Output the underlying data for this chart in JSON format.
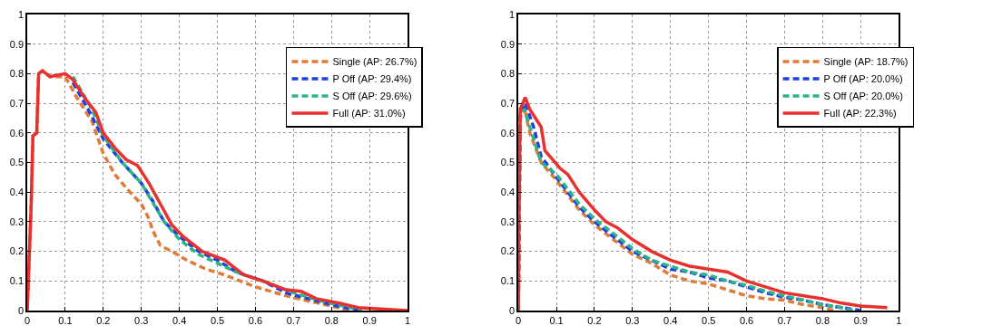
{
  "chart_data": [
    {
      "type": "line",
      "xlim": [
        0,
        1
      ],
      "ylim": [
        0,
        1
      ],
      "xticks": [
        0,
        0.1,
        0.2,
        0.3,
        0.4,
        0.5,
        0.6,
        0.7,
        0.8,
        0.9,
        1
      ],
      "yticks": [
        0,
        0.1,
        0.2,
        0.3,
        0.4,
        0.5,
        0.6,
        0.7,
        0.8,
        0.9,
        1
      ],
      "grid": true,
      "legend": "top right",
      "marker": "none",
      "series": [
        {
          "name": "Single (AP: 26.7%)",
          "color": "#e07b39",
          "line_style": "dashed",
          "x": [
            0,
            0.01,
            0.015,
            0.025,
            0.03,
            0.04,
            0.06,
            0.08,
            0.1,
            0.13,
            0.17,
            0.2,
            0.23,
            0.27,
            0.3,
            0.32,
            0.33,
            0.35,
            0.38,
            0.42,
            0.47,
            0.52,
            0.6,
            0.68,
            0.73,
            0.8,
            0.85
          ],
          "values": [
            0,
            0.34,
            0.59,
            0.6,
            0.8,
            0.81,
            0.79,
            0.79,
            0.79,
            0.72,
            0.64,
            0.53,
            0.46,
            0.4,
            0.36,
            0.31,
            0.27,
            0.22,
            0.2,
            0.17,
            0.14,
            0.12,
            0.08,
            0.05,
            0.035,
            0.015,
            0
          ]
        },
        {
          "name": "P Off (AP: 29.4%)",
          "color": "#1f3fe0",
          "line_style": "dashed",
          "x": [
            0.12,
            0.16,
            0.2,
            0.25,
            0.3,
            0.33,
            0.36,
            0.4,
            0.45,
            0.5,
            0.55,
            0.62,
            0.68,
            0.74,
            0.8,
            0.87
          ],
          "values": [
            0.77,
            0.68,
            0.58,
            0.5,
            0.43,
            0.37,
            0.3,
            0.25,
            0.2,
            0.17,
            0.13,
            0.1,
            0.06,
            0.04,
            0.02,
            0
          ]
        },
        {
          "name": "S Off (AP: 29.6%)",
          "color": "#2bb38a",
          "line_style": "dashed",
          "x": [
            0.12,
            0.17,
            0.2,
            0.25,
            0.3,
            0.36,
            0.4,
            0.45,
            0.5,
            0.55,
            0.62,
            0.7,
            0.78,
            0.85,
            0.88
          ],
          "values": [
            0.79,
            0.68,
            0.59,
            0.5,
            0.43,
            0.3,
            0.24,
            0.19,
            0.16,
            0.13,
            0.1,
            0.06,
            0.03,
            0.01,
            0
          ]
        },
        {
          "name": "Full (AP: 31.0%)",
          "color": "#e8312f",
          "line_style": "solid",
          "x": [
            0,
            0.01,
            0.015,
            0.025,
            0.03,
            0.04,
            0.06,
            0.08,
            0.1,
            0.12,
            0.15,
            0.18,
            0.2,
            0.23,
            0.26,
            0.29,
            0.32,
            0.35,
            0.38,
            0.41,
            0.46,
            0.52,
            0.57,
            0.62,
            0.68,
            0.72,
            0.76,
            0.82,
            0.87,
            0.93,
            1
          ],
          "values": [
            0,
            0.34,
            0.59,
            0.6,
            0.8,
            0.81,
            0.79,
            0.795,
            0.8,
            0.78,
            0.72,
            0.67,
            0.6,
            0.55,
            0.51,
            0.49,
            0.43,
            0.36,
            0.29,
            0.25,
            0.2,
            0.17,
            0.12,
            0.1,
            0.07,
            0.065,
            0.04,
            0.025,
            0.01,
            0.005,
            0
          ]
        }
      ]
    },
    {
      "type": "line",
      "xlim": [
        0,
        1
      ],
      "ylim": [
        0,
        1
      ],
      "xticks": [
        0,
        0.1,
        0.2,
        0.3,
        0.4,
        0.5,
        0.6,
        0.7,
        0.8,
        0.9,
        1
      ],
      "yticks": [
        0,
        0.1,
        0.2,
        0.3,
        0.4,
        0.5,
        0.6,
        0.7,
        0.8,
        0.9,
        1
      ],
      "grid": true,
      "legend": "top right",
      "marker": "none",
      "series": [
        {
          "name": "Single (AP: 18.7%)",
          "color": "#e07b39",
          "line_style": "dashed",
          "x": [
            0,
            0.005,
            0.015,
            0.03,
            0.06,
            0.1,
            0.13,
            0.16,
            0.2,
            0.25,
            0.3,
            0.35,
            0.4,
            0.45,
            0.5,
            0.55,
            0.6,
            0.65,
            0.7,
            0.75,
            0.8,
            0.83
          ],
          "values": [
            0,
            0.65,
            0.69,
            0.6,
            0.5,
            0.44,
            0.39,
            0.34,
            0.29,
            0.24,
            0.19,
            0.16,
            0.12,
            0.1,
            0.09,
            0.07,
            0.05,
            0.04,
            0.035,
            0.02,
            0.01,
            0
          ]
        },
        {
          "name": "P Off (AP: 20.0%)",
          "color": "#1f3fe0",
          "line_style": "dashed",
          "x": [
            0,
            0.005,
            0.018,
            0.04,
            0.06,
            0.1,
            0.13,
            0.16,
            0.2,
            0.25,
            0.3,
            0.35,
            0.4,
            0.45,
            0.5,
            0.55,
            0.6,
            0.65,
            0.7,
            0.75,
            0.8,
            0.85,
            0.9
          ],
          "values": [
            0,
            0.67,
            0.7,
            0.62,
            0.52,
            0.45,
            0.4,
            0.35,
            0.3,
            0.25,
            0.2,
            0.17,
            0.14,
            0.13,
            0.11,
            0.1,
            0.08,
            0.06,
            0.045,
            0.035,
            0.02,
            0.01,
            0
          ]
        },
        {
          "name": "S Off (AP: 20.0%)",
          "color": "#2bb38a",
          "line_style": "dashed",
          "x": [
            0,
            0.005,
            0.015,
            0.04,
            0.06,
            0.1,
            0.13,
            0.16,
            0.2,
            0.25,
            0.3,
            0.35,
            0.4,
            0.45,
            0.5,
            0.55,
            0.6,
            0.65,
            0.7,
            0.75,
            0.8,
            0.85,
            0.88
          ],
          "values": [
            0,
            0.66,
            0.68,
            0.58,
            0.5,
            0.46,
            0.41,
            0.36,
            0.31,
            0.26,
            0.21,
            0.17,
            0.15,
            0.13,
            0.12,
            0.1,
            0.085,
            0.065,
            0.05,
            0.035,
            0.02,
            0.01,
            0
          ]
        },
        {
          "name": "Full (AP: 22.3%)",
          "color": "#e8312f",
          "line_style": "solid",
          "x": [
            0,
            0.002,
            0.005,
            0.018,
            0.03,
            0.05,
            0.06,
            0.07,
            0.09,
            0.11,
            0.13,
            0.16,
            0.2,
            0.23,
            0.26,
            0.3,
            0.35,
            0.4,
            0.45,
            0.5,
            0.55,
            0.6,
            0.65,
            0.7,
            0.8,
            0.85,
            0.9,
            0.97
          ],
          "values": [
            0,
            0.35,
            0.68,
            0.72,
            0.68,
            0.64,
            0.62,
            0.54,
            0.51,
            0.48,
            0.46,
            0.4,
            0.34,
            0.3,
            0.28,
            0.24,
            0.2,
            0.17,
            0.15,
            0.14,
            0.13,
            0.1,
            0.08,
            0.06,
            0.04,
            0.025,
            0.015,
            0.01
          ]
        }
      ]
    }
  ]
}
